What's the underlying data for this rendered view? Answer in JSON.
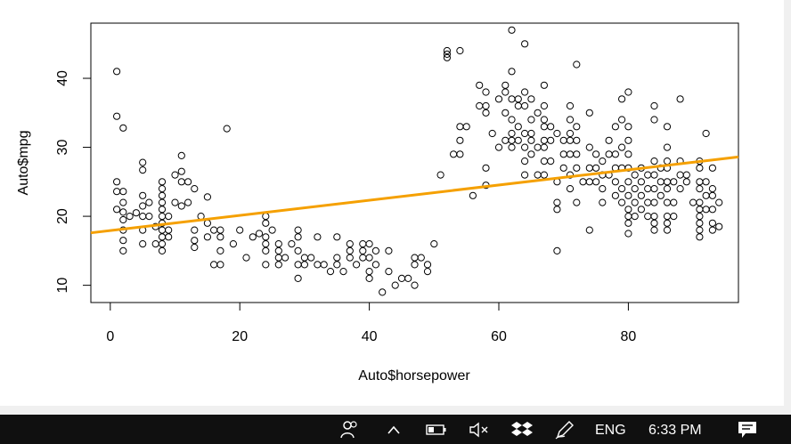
{
  "chart_data": {
    "type": "scatter",
    "title": "",
    "xlabel": "Auto$horsepower",
    "ylabel": "Auto$mpg",
    "xlim": [
      -3,
      97
    ],
    "ylim": [
      7.5,
      48
    ],
    "x_ticks": [
      "0",
      "20",
      "40",
      "60",
      "80"
    ],
    "x_tick_values": [
      0,
      20,
      40,
      60,
      80
    ],
    "y_ticks": [
      "10",
      "20",
      "30",
      "40"
    ],
    "y_tick_values": [
      10,
      20,
      30,
      40
    ],
    "grid": false,
    "point_color": "#000000",
    "regression_line": {
      "color": "#f5a000",
      "x": [
        -3,
        97
      ],
      "y": [
        17.6,
        28.6
      ]
    },
    "points": [
      [
        1,
        41
      ],
      [
        1,
        34.5
      ],
      [
        2,
        32.8
      ],
      [
        1,
        25
      ],
      [
        1,
        23.6
      ],
      [
        2,
        23.6
      ],
      [
        1,
        21
      ],
      [
        2,
        20.6
      ],
      [
        2,
        22
      ],
      [
        2,
        19.5
      ],
      [
        2,
        18
      ],
      [
        2,
        16.5
      ],
      [
        2,
        15
      ],
      [
        3,
        20
      ],
      [
        4,
        20.5
      ],
      [
        5,
        23
      ],
      [
        5,
        21.5
      ],
      [
        5,
        20
      ],
      [
        5,
        18
      ],
      [
        5,
        16
      ],
      [
        5,
        27.8
      ],
      [
        5,
        26.7
      ],
      [
        6,
        22
      ],
      [
        6,
        20
      ],
      [
        7,
        18.5
      ],
      [
        7,
        16
      ],
      [
        8,
        15
      ],
      [
        8,
        16
      ],
      [
        8,
        17
      ],
      [
        8,
        18
      ],
      [
        8,
        19
      ],
      [
        8,
        20
      ],
      [
        8,
        21
      ],
      [
        8,
        22
      ],
      [
        8,
        23
      ],
      [
        8,
        24
      ],
      [
        8,
        25
      ],
      [
        9,
        20
      ],
      [
        9,
        18
      ],
      [
        9,
        17
      ],
      [
        10,
        22
      ],
      [
        10,
        26
      ],
      [
        11,
        28.8
      ],
      [
        11,
        26.5
      ],
      [
        11,
        25
      ],
      [
        11,
        21.5
      ],
      [
        12,
        25
      ],
      [
        12,
        22
      ],
      [
        13,
        24
      ],
      [
        13,
        18
      ],
      [
        13,
        16.5
      ],
      [
        13,
        15.5
      ],
      [
        14,
        20
      ],
      [
        15,
        22.8
      ],
      [
        15,
        17
      ],
      [
        15,
        19
      ],
      [
        16,
        18
      ],
      [
        16,
        13
      ],
      [
        17,
        13
      ],
      [
        17,
        18
      ],
      [
        17,
        17
      ],
      [
        17,
        15
      ],
      [
        18,
        32.7
      ],
      [
        19,
        16
      ],
      [
        20,
        18
      ],
      [
        21,
        14
      ],
      [
        22,
        17
      ],
      [
        23,
        17.5
      ],
      [
        24,
        20
      ],
      [
        24,
        19
      ],
      [
        24,
        17
      ],
      [
        24,
        16
      ],
      [
        24,
        15
      ],
      [
        24,
        13
      ],
      [
        25,
        18
      ],
      [
        26,
        14
      ],
      [
        26,
        16
      ],
      [
        26,
        15
      ],
      [
        26,
        13
      ],
      [
        27,
        14
      ],
      [
        28,
        16
      ],
      [
        29,
        18
      ],
      [
        29,
        17
      ],
      [
        29,
        15
      ],
      [
        29,
        13
      ],
      [
        29,
        11
      ],
      [
        30,
        14
      ],
      [
        30,
        13
      ],
      [
        31,
        14
      ],
      [
        32,
        17
      ],
      [
        32,
        13
      ],
      [
        33,
        13
      ],
      [
        34,
        12
      ],
      [
        35,
        17
      ],
      [
        35,
        14
      ],
      [
        35,
        13
      ],
      [
        36,
        12
      ],
      [
        37,
        15
      ],
      [
        37,
        16
      ],
      [
        37,
        14
      ],
      [
        38,
        13
      ],
      [
        39,
        16
      ],
      [
        39,
        15
      ],
      [
        39,
        14
      ],
      [
        40,
        16
      ],
      [
        40,
        14
      ],
      [
        40,
        12
      ],
      [
        40,
        11
      ],
      [
        41,
        15
      ],
      [
        41,
        13
      ],
      [
        42,
        9
      ],
      [
        43,
        15
      ],
      [
        43,
        12
      ],
      [
        44,
        10
      ],
      [
        45,
        11
      ],
      [
        46,
        11
      ],
      [
        47,
        14
      ],
      [
        47,
        13
      ],
      [
        47,
        10
      ],
      [
        48,
        14
      ],
      [
        49,
        13
      ],
      [
        49,
        12
      ],
      [
        50,
        16
      ],
      [
        51,
        26
      ],
      [
        52,
        44
      ],
      [
        52,
        43.5
      ],
      [
        52,
        43
      ],
      [
        53,
        29
      ],
      [
        54,
        44
      ],
      [
        54,
        33
      ],
      [
        54,
        31
      ],
      [
        54,
        29
      ],
      [
        55,
        33
      ],
      [
        56,
        23
      ],
      [
        57,
        39
      ],
      [
        57,
        36
      ],
      [
        58,
        38
      ],
      [
        58,
        36
      ],
      [
        58,
        35
      ],
      [
        58,
        27
      ],
      [
        58,
        24.5
      ],
      [
        59,
        32
      ],
      [
        60,
        37
      ],
      [
        60,
        30
      ],
      [
        61,
        39
      ],
      [
        61,
        38
      ],
      [
        61,
        35
      ],
      [
        61,
        31
      ],
      [
        62,
        47
      ],
      [
        62,
        41
      ],
      [
        62,
        37
      ],
      [
        62,
        34
      ],
      [
        62,
        32
      ],
      [
        62,
        31
      ],
      [
        62,
        30
      ],
      [
        63,
        37
      ],
      [
        63,
        36
      ],
      [
        63,
        33
      ],
      [
        63,
        31
      ],
      [
        64,
        45
      ],
      [
        64,
        38
      ],
      [
        64,
        36
      ],
      [
        64,
        32
      ],
      [
        64,
        30
      ],
      [
        64,
        28
      ],
      [
        64,
        26
      ],
      [
        65,
        37
      ],
      [
        65,
        34
      ],
      [
        65,
        32
      ],
      [
        65,
        31
      ],
      [
        65,
        29
      ],
      [
        66,
        35
      ],
      [
        66,
        30
      ],
      [
        66,
        26
      ],
      [
        67,
        39
      ],
      [
        67,
        36
      ],
      [
        67,
        34
      ],
      [
        67,
        33
      ],
      [
        67,
        31
      ],
      [
        67,
        30
      ],
      [
        67,
        28
      ],
      [
        67,
        26
      ],
      [
        68,
        33
      ],
      [
        68,
        31
      ],
      [
        68,
        28
      ],
      [
        69,
        32
      ],
      [
        69,
        25
      ],
      [
        69,
        22
      ],
      [
        69,
        21
      ],
      [
        69,
        15
      ],
      [
        70,
        31
      ],
      [
        70,
        29
      ],
      [
        70,
        27
      ],
      [
        71,
        36
      ],
      [
        71,
        34
      ],
      [
        71,
        32
      ],
      [
        71,
        31
      ],
      [
        71,
        29
      ],
      [
        71,
        26
      ],
      [
        71,
        24
      ],
      [
        72,
        42
      ],
      [
        72,
        33
      ],
      [
        72,
        31
      ],
      [
        72,
        29
      ],
      [
        72,
        27
      ],
      [
        72,
        22
      ],
      [
        73,
        25
      ],
      [
        74,
        35
      ],
      [
        74,
        30
      ],
      [
        74,
        27
      ],
      [
        74,
        25
      ],
      [
        74,
        18
      ],
      [
        75,
        29
      ],
      [
        75,
        27
      ],
      [
        75,
        25
      ],
      [
        76,
        28
      ],
      [
        76,
        26
      ],
      [
        76,
        24
      ],
      [
        76,
        22
      ],
      [
        77,
        31
      ],
      [
        77,
        29
      ],
      [
        77,
        26
      ],
      [
        78,
        33
      ],
      [
        78,
        29
      ],
      [
        78,
        27
      ],
      [
        78,
        25
      ],
      [
        78,
        23
      ],
      [
        79,
        37
      ],
      [
        79,
        34
      ],
      [
        79,
        30
      ],
      [
        79,
        27
      ],
      [
        79,
        24
      ],
      [
        79,
        22
      ],
      [
        80,
        38
      ],
      [
        80,
        33
      ],
      [
        80,
        31
      ],
      [
        80,
        29
      ],
      [
        80,
        27
      ],
      [
        80,
        25
      ],
      [
        80,
        23
      ],
      [
        80,
        21
      ],
      [
        80,
        20
      ],
      [
        80,
        19
      ],
      [
        80,
        17.5
      ],
      [
        81,
        26
      ],
      [
        81,
        24
      ],
      [
        81,
        22
      ],
      [
        81,
        20
      ],
      [
        82,
        27
      ],
      [
        82,
        25
      ],
      [
        82,
        23
      ],
      [
        82,
        21
      ],
      [
        83,
        26
      ],
      [
        83,
        24
      ],
      [
        83,
        22
      ],
      [
        83,
        20
      ],
      [
        84,
        36
      ],
      [
        84,
        34
      ],
      [
        84,
        28
      ],
      [
        84,
        26
      ],
      [
        84,
        24
      ],
      [
        84,
        22
      ],
      [
        84,
        20
      ],
      [
        84,
        19
      ],
      [
        84,
        18
      ],
      [
        85,
        27
      ],
      [
        85,
        25
      ],
      [
        85,
        23
      ],
      [
        86,
        33
      ],
      [
        86,
        30
      ],
      [
        86,
        28
      ],
      [
        86,
        27
      ],
      [
        86,
        25
      ],
      [
        86,
        24
      ],
      [
        86,
        22
      ],
      [
        86,
        20
      ],
      [
        86,
        19
      ],
      [
        86,
        18
      ],
      [
        87,
        25
      ],
      [
        87,
        22
      ],
      [
        87,
        20
      ],
      [
        88,
        37
      ],
      [
        88,
        28
      ],
      [
        88,
        26
      ],
      [
        88,
        24
      ],
      [
        89,
        26
      ],
      [
        89,
        25
      ],
      [
        90,
        22
      ],
      [
        91,
        28
      ],
      [
        91,
        27
      ],
      [
        91,
        25
      ],
      [
        91,
        24
      ],
      [
        91,
        22
      ],
      [
        91,
        21
      ],
      [
        91,
        20
      ],
      [
        91,
        19
      ],
      [
        91,
        18
      ],
      [
        91,
        17
      ],
      [
        92,
        32
      ],
      [
        92,
        25
      ],
      [
        92,
        23
      ],
      [
        92,
        21
      ],
      [
        93,
        27
      ],
      [
        93,
        24
      ],
      [
        93,
        23
      ],
      [
        93,
        21
      ],
      [
        93,
        19
      ],
      [
        93,
        18
      ],
      [
        94,
        22
      ],
      [
        94,
        18.5
      ]
    ]
  },
  "taskbar": {
    "people_icon": "people-icon",
    "tray_chevron_icon": "chevron-up-icon",
    "battery_icon": "battery-icon",
    "volume_icon": "volume-muted-icon",
    "dropbox_icon": "dropbox-icon",
    "pen_icon": "pen-icon",
    "language": "ENG",
    "time": "6:33 PM",
    "notifications_icon": "notification-icon"
  }
}
